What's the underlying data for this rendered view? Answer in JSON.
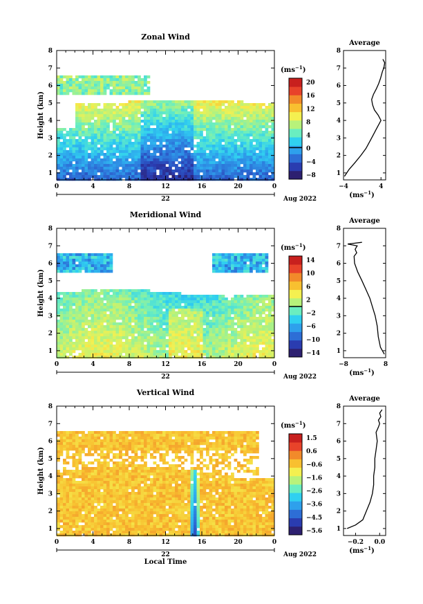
{
  "panels": [
    {
      "title": "Zonal Wind",
      "ylabel": "Height (km)",
      "ytick_labels": [
        "1",
        "2",
        "3",
        "4",
        "5",
        "6",
        "7",
        "8"
      ],
      "xtick_labels": [
        "0",
        "4",
        "8",
        "12",
        "16",
        "20",
        "0"
      ],
      "date_day": "22",
      "date_month": "Aug 2022",
      "unit": "(ms",
      "unit_sup": "−1",
      "colorbar_tick_labels": [
        "20",
        "16",
        "12",
        "8",
        "4",
        "0",
        "−4",
        "−8"
      ],
      "profile_title": "Average",
      "profile_xtick_labels": [
        "−4",
        "4"
      ],
      "profile_xlabel": "(ms",
      "profile_xlabel_sup": "−1"
    },
    {
      "title": "Meridional Wind",
      "ylabel": "Height (km)",
      "ytick_labels": [
        "1",
        "2",
        "3",
        "4",
        "5",
        "6",
        "7",
        "8"
      ],
      "xtick_labels": [
        "0",
        "4",
        "8",
        "12",
        "16",
        "20",
        "0"
      ],
      "date_day": "22",
      "date_month": "Aug 2022",
      "unit": "(ms",
      "unit_sup": "−1",
      "colorbar_tick_labels": [
        "14",
        "10",
        "6",
        "2",
        "−2",
        "−6",
        "−10",
        "−14"
      ],
      "profile_title": "Average",
      "profile_xtick_labels": [
        "−8",
        "8"
      ],
      "profile_xlabel": "(ms",
      "profile_xlabel_sup": "−1"
    },
    {
      "title": "Vertical Wind",
      "ylabel": "Height (km)",
      "ytick_labels": [
        "1",
        "2",
        "3",
        "4",
        "5",
        "6",
        "7",
        "8"
      ],
      "xtick_labels": [
        "0",
        "4",
        "8",
        "12",
        "16",
        "20",
        "0"
      ],
      "date_day": "22",
      "date_month": "Aug 2022",
      "xlabel": "Local Time",
      "unit": "(ms",
      "unit_sup": "−1",
      "colorbar_tick_labels": [
        "1.5",
        "0.6",
        "−0.6",
        "−1.6",
        "−2.6",
        "−3.6",
        "−4.5",
        "−5.6"
      ],
      "profile_title": "Average",
      "profile_xtick_labels": [
        "−0.2",
        "0.0"
      ],
      "profile_xlabel": "(ms",
      "profile_xlabel_sup": "−1"
    }
  ],
  "chart_data": [
    {
      "type": "heatmap",
      "title": "Zonal Wind",
      "xlabel": "",
      "ylabel": "Height (km)",
      "xlim": [
        0,
        24
      ],
      "ylim": [
        0.6,
        8
      ],
      "color_range": [
        -10,
        22
      ],
      "colorbar_ticks": [
        20,
        16,
        12,
        8,
        4,
        0,
        -4,
        -8
      ],
      "zero_contour": 0,
      "colorscale": [
        "#2d2070",
        "#2a3cb0",
        "#2d6ed6",
        "#2ea0ec",
        "#30d0f0",
        "#6aeec0",
        "#b8f27a",
        "#f4f050",
        "#f8c030",
        "#f28a2a",
        "#e8432a",
        "#c8201e"
      ]
    },
    {
      "type": "line",
      "title": "Average",
      "xlabel": "",
      "ylabel": "Height (km)",
      "xlim": [
        -4,
        5
      ],
      "ylim": [
        0.6,
        8
      ],
      "xticks": [
        -4,
        4
      ],
      "x": [
        -3.8,
        -2.8,
        -1.5,
        -0.3,
        0.8,
        1.6,
        2.4,
        3.0,
        3.6,
        4.0,
        3.4,
        2.6,
        2.2,
        2.0,
        2.4,
        3.0,
        3.5,
        3.9,
        4.3,
        4.6,
        4.8,
        4.4
      ],
      "y": [
        0.8,
        1.2,
        1.6,
        2.0,
        2.4,
        2.8,
        3.2,
        3.5,
        3.8,
        4.0,
        4.3,
        4.6,
        4.9,
        5.2,
        5.5,
        5.8,
        6.1,
        6.4,
        6.8,
        7.0,
        7.3,
        7.5
      ]
    },
    {
      "type": "heatmap",
      "title": "Meridional Wind",
      "xlabel": "",
      "ylabel": "Height (km)",
      "xlim": [
        0,
        24
      ],
      "ylim": [
        0.6,
        8
      ],
      "color_range": [
        -16,
        16
      ],
      "colorbar_ticks": [
        14,
        10,
        6,
        2,
        -2,
        -6,
        -10,
        -14
      ],
      "zero_contour": 0,
      "colorscale": [
        "#2d2070",
        "#2a3cb0",
        "#2d6ed6",
        "#2ea0ec",
        "#30d0f0",
        "#6aeec0",
        "#b8f27a",
        "#f4f050",
        "#f8c030",
        "#f28a2a",
        "#e8432a",
        "#c8201e"
      ]
    },
    {
      "type": "line",
      "title": "Average",
      "xlabel": "",
      "ylabel": "Height (km)",
      "xlim": [
        -8,
        8
      ],
      "ylim": [
        0.6,
        8
      ],
      "xticks": [
        -8,
        8
      ],
      "x": [
        7.5,
        6.0,
        5.2,
        4.8,
        4.0,
        3.0,
        2.0,
        0.5,
        -1.0,
        -2.6,
        -3.8,
        -4.0,
        -3.0,
        -3.6,
        -2.8,
        -6.4,
        -1.0
      ],
      "y": [
        0.8,
        1.2,
        1.8,
        2.4,
        3.0,
        3.5,
        4.0,
        4.5,
        5.0,
        5.5,
        6.0,
        6.4,
        6.6,
        6.8,
        7.0,
        7.1,
        7.2
      ]
    },
    {
      "type": "heatmap",
      "title": "Vertical Wind",
      "xlabel": "Local Time",
      "ylabel": "Height (km)",
      "xlim": [
        0,
        24
      ],
      "ylim": [
        0.6,
        8
      ],
      "color_range": [
        -6.2,
        2.0
      ],
      "colorbar_ticks": [
        1.5,
        0.6,
        -0.6,
        -1.6,
        -2.6,
        -3.6,
        -4.5,
        -5.6
      ],
      "colorscale": [
        "#2d2070",
        "#2a3cb0",
        "#2d6ed6",
        "#2ea0ec",
        "#30d0f0",
        "#6aeec0",
        "#b8f27a",
        "#f4f050",
        "#f8c030",
        "#f28a2a",
        "#e8432a",
        "#c8201e"
      ]
    },
    {
      "type": "line",
      "title": "Average",
      "xlabel": "",
      "ylabel": "Height (km)",
      "xlim": [
        -0.3,
        0.05
      ],
      "ylim": [
        0.6,
        8
      ],
      "xticks": [
        -0.2,
        0.0
      ],
      "x": [
        -0.27,
        -0.2,
        -0.14,
        -0.11,
        -0.08,
        -0.06,
        -0.05,
        -0.05,
        -0.04,
        -0.04,
        -0.03,
        -0.02,
        -0.03,
        -0.01,
        0.0,
        -0.01,
        0.01,
        0.0,
        0.02
      ],
      "y": [
        1.0,
        1.2,
        1.5,
        2.0,
        2.5,
        3.0,
        3.5,
        4.0,
        4.5,
        5.0,
        5.5,
        6.0,
        6.5,
        6.8,
        7.0,
        7.2,
        7.4,
        7.6,
        7.8
      ]
    }
  ]
}
